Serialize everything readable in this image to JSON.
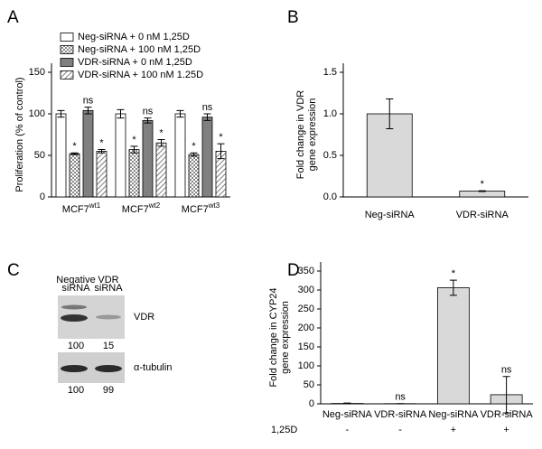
{
  "chart_data": [
    {
      "type": "bar",
      "title": "A",
      "categories": [
        "MCF7",
        "MCF7",
        "MCF7"
      ],
      "category_superscripts": [
        "wt1",
        "wt2",
        "wt3"
      ],
      "ylabel": "Proliferation (% of control)",
      "ylim": [
        0,
        150
      ],
      "yticks": [
        0,
        50,
        100,
        150
      ],
      "legend": "upper left",
      "series": [
        {
          "name": "Neg-siRNA + 0 nM 1,25D",
          "color": "#ffffff",
          "values": [
            100,
            100,
            100
          ],
          "errors": [
            4,
            5,
            4
          ]
        },
        {
          "name": "Neg-siRNA + 100 nM 1,25D",
          "color": "#ffffff",
          "pattern": "checker",
          "values": [
            52,
            57,
            51
          ],
          "errors": [
            1,
            4,
            2
          ],
          "annotations": [
            "*",
            "*",
            "*"
          ]
        },
        {
          "name": "VDR-siRNA + 0 nM 1,25D",
          "color": "#808080",
          "values": [
            104,
            92,
            96
          ],
          "errors": [
            4,
            3,
            4
          ],
          "annotations": [
            "ns",
            "ns",
            "ns"
          ]
        },
        {
          "name": "VDR-siRNA + 100 nM 1.25D",
          "color": "#ffffff",
          "pattern": "hatch",
          "values": [
            55,
            65,
            55
          ],
          "errors": [
            2,
            4,
            9
          ],
          "annotations": [
            "*",
            "*",
            "*"
          ]
        }
      ]
    },
    {
      "type": "bar",
      "title": "B",
      "categories": [
        "Neg-siRNA",
        "VDR-siRNA"
      ],
      "values": [
        1.0,
        0.07
      ],
      "errors": [
        0.18,
        0.005
      ],
      "annotations": [
        null,
        "*"
      ],
      "color": "#d9d9d9",
      "ylabel": [
        "Fold change in VDR",
        "gene expression"
      ],
      "ylim": [
        0,
        1.5
      ],
      "yticks": [
        {
          "value": 0,
          "label": "0.0"
        },
        {
          "value": 0.5,
          "label": "0.5"
        },
        {
          "value": 1,
          "label": "1.0"
        },
        {
          "value": 1.5,
          "label": "1.5"
        }
      ]
    },
    {
      "type": "bar",
      "title": "D",
      "categories": [
        "Neg-siRNA",
        "VDR-siRNA",
        "Neg-siRNA",
        "VDR-siRNA"
      ],
      "values": [
        1,
        0.5,
        306,
        24
      ],
      "errors": [
        1,
        0,
        20,
        48
      ],
      "annotations": [
        null,
        "ns",
        "*",
        "ns"
      ],
      "color": "#d9d9d9",
      "ylabel": [
        "Fold change in CYP24",
        "gene expression"
      ],
      "ylim": [
        0,
        350
      ],
      "yticks": [
        0,
        50,
        100,
        150,
        200,
        250,
        300,
        350
      ],
      "row_label": "1,25D",
      "row_values": [
        "-",
        "-",
        "+",
        "+"
      ]
    }
  ],
  "blot": {
    "title": "C",
    "lanes": [
      [
        "Negative",
        "siRNA"
      ],
      [
        "VDR",
        "siRNA"
      ]
    ],
    "bands": [
      {
        "label": "VDR",
        "quantities": [
          100,
          15
        ]
      },
      {
        "label": "α-tubulin",
        "quantities": [
          100,
          99
        ]
      }
    ]
  }
}
